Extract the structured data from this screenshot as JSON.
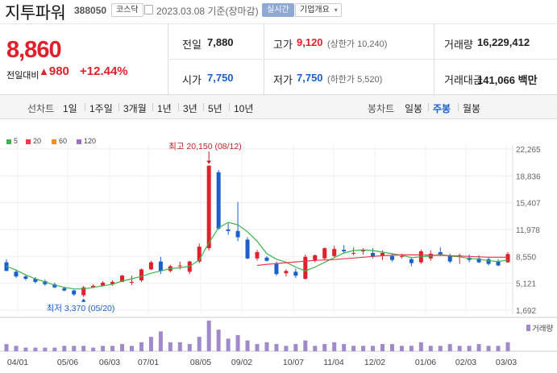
{
  "header": {
    "name": "지투파워",
    "code": "388050",
    "market_badge": "코스닥",
    "date": "2023.03.08 기준(장마감)",
    "realtime_badge": "실시간",
    "company_badge": "기업개요"
  },
  "quote": {
    "price": "8,860",
    "change_label": "전일대비",
    "change": "980",
    "change_pct": "+12.44%",
    "prev_label": "전일",
    "prev": "7,880",
    "high_label": "고가",
    "high": "9,120",
    "upper_limit": "(상한가 10,240)",
    "volume_label": "거래량",
    "volume": "16,229,412",
    "open_label": "시가",
    "open": "7,750",
    "low_label": "저가",
    "low": "7,750",
    "lower_limit": "(하한가 5,520)",
    "amount_label": "거래대금",
    "amount": "141,066 백만"
  },
  "toolbar": {
    "line_label": "선차트",
    "periods": [
      "1일",
      "1주일",
      "3개월",
      "1년",
      "3년",
      "5년",
      "10년"
    ],
    "candle_label": "봉차트",
    "candle_types": [
      "일봉",
      "주봉",
      "월봉"
    ],
    "selected_candle": "주봉"
  },
  "chart_data": {
    "type": "candlestick",
    "legend": [
      {
        "name": "5",
        "color": "#3cb44b"
      },
      {
        "name": "20",
        "color": "#e6394a"
      },
      {
        "name": "60",
        "color": "#f08c28"
      },
      {
        "name": "120",
        "color": "#9b6fc7"
      }
    ],
    "y_ticks": [
      "22,265",
      "18,836",
      "15,407",
      "11,978",
      "8,550",
      "5,121",
      "1,692"
    ],
    "y_range": [
      1692,
      22265
    ],
    "x_ticks": [
      "04/01",
      "05/06",
      "06/03",
      "07/01",
      "08/05",
      "09/02",
      "10/07",
      "11/04",
      "12/02",
      "01/06",
      "02/03",
      "03/03"
    ],
    "high_annotation": "최고 20,150 (08/12)",
    "low_annotation": "최저 3,370 (05/20)",
    "volume_label": "거래량",
    "candles": [
      [
        7800,
        8200,
        6700,
        6700
      ],
      [
        6600,
        6900,
        5800,
        6000
      ],
      [
        6000,
        6200,
        5500,
        5700
      ],
      [
        5700,
        5900,
        5100,
        5300
      ],
      [
        5400,
        5600,
        4800,
        5000
      ],
      [
        5000,
        5200,
        4500,
        4600
      ],
      [
        4500,
        4700,
        4100,
        4200
      ],
      [
        4200,
        4300,
        3500,
        3700
      ],
      [
        3600,
        4800,
        3370,
        4600
      ],
      [
        4600,
        5000,
        4500,
        4800
      ],
      [
        4800,
        5400,
        4700,
        5200
      ],
      [
        5000,
        5500,
        4800,
        5300
      ],
      [
        5300,
        6200,
        5300,
        6100
      ],
      [
        5200,
        6100,
        4900,
        5300
      ],
      [
        5500,
        7000,
        5300,
        6900
      ],
      [
        6900,
        8000,
        6800,
        7800
      ],
      [
        7900,
        8500,
        6300,
        6700
      ],
      [
        6700,
        7500,
        6500,
        7300
      ],
      [
        7300,
        7900,
        6900,
        7400
      ],
      [
        6600,
        8000,
        6300,
        7900
      ],
      [
        7900,
        10200,
        7700,
        9800
      ],
      [
        9600,
        20150,
        9300,
        20150
      ],
      [
        19300,
        19600,
        12000,
        12100
      ],
      [
        12000,
        12800,
        11300,
        11800
      ],
      [
        11800,
        15500,
        10500,
        11000
      ],
      [
        10700,
        11000,
        8200,
        8300
      ],
      [
        8300,
        9400,
        8000,
        9100
      ],
      [
        8400,
        8600,
        7900,
        8000
      ],
      [
        7600,
        7900,
        6100,
        6300
      ],
      [
        6400,
        6900,
        6000,
        6700
      ],
      [
        6600,
        7000,
        5800,
        6100
      ],
      [
        5700,
        8800,
        5600,
        8500
      ],
      [
        8000,
        8800,
        7800,
        8700
      ],
      [
        8300,
        9700,
        8100,
        9600
      ],
      [
        8600,
        9900,
        8400,
        9500
      ],
      [
        9400,
        10000,
        8900,
        9200
      ],
      [
        9000,
        9700,
        8700,
        9000
      ],
      [
        9200,
        9600,
        8800,
        9400
      ],
      [
        9000,
        9600,
        8300,
        8500
      ],
      [
        8600,
        9300,
        8100,
        9000
      ],
      [
        8600,
        8900,
        7900,
        8100
      ],
      [
        8500,
        8900,
        8300,
        8600
      ],
      [
        8200,
        8400,
        7300,
        7700
      ],
      [
        7800,
        9400,
        7600,
        9200
      ],
      [
        8300,
        9300,
        8000,
        8900
      ],
      [
        9100,
        9700,
        8600,
        8800
      ],
      [
        8700,
        8900,
        7700,
        7900
      ],
      [
        8600,
        8900,
        7600,
        8700
      ],
      [
        8400,
        8800,
        7800,
        8100
      ],
      [
        8300,
        8700,
        7700,
        7800
      ],
      [
        8200,
        8400,
        7400,
        7600
      ],
      [
        7900,
        8200,
        7300,
        7400
      ],
      [
        7800,
        9120,
        7750,
        8860
      ]
    ],
    "ma5": [
      7300,
      6800,
      6200,
      5700,
      5300,
      4900,
      4600,
      4400,
      4400,
      4600,
      4800,
      5000,
      5400,
      5700,
      6000,
      6400,
      6700,
      7000,
      7100,
      7300,
      8100,
      10300,
      12200,
      12900,
      12600,
      11700,
      10500,
      8900,
      8200,
      7800,
      7200,
      6700,
      7200,
      7800,
      8400,
      9000,
      9300,
      9400,
      9300,
      9100,
      8900,
      8700,
      8400,
      8500,
      8600,
      8800,
      8600,
      8500,
      8300,
      8200,
      8000,
      7900,
      8100
    ],
    "ma20": [
      null,
      null,
      null,
      null,
      null,
      null,
      null,
      null,
      null,
      null,
      null,
      null,
      null,
      null,
      null,
      null,
      null,
      null,
      null,
      null,
      null,
      null,
      null,
      null,
      null,
      null,
      7400,
      7550,
      7650,
      7750,
      7850,
      7950,
      8050,
      8100,
      8150,
      8250,
      8350,
      8450,
      8550,
      8650,
      8700,
      8750,
      8750,
      8750,
      8700,
      8700,
      8650,
      8600,
      8550,
      8500,
      8450,
      8450,
      8450
    ],
    "volume": [
      4,
      3,
      2,
      2,
      2,
      2,
      3,
      3,
      3,
      2,
      3,
      3,
      4,
      3,
      5,
      8,
      11,
      5,
      5,
      4,
      8,
      17,
      12,
      7,
      9,
      6,
      4,
      5,
      4,
      3,
      4,
      6,
      3,
      4,
      5,
      4,
      3,
      3,
      3,
      4,
      4,
      3,
      3,
      5,
      3,
      3,
      4,
      3,
      3,
      4,
      3,
      3,
      5
    ]
  }
}
